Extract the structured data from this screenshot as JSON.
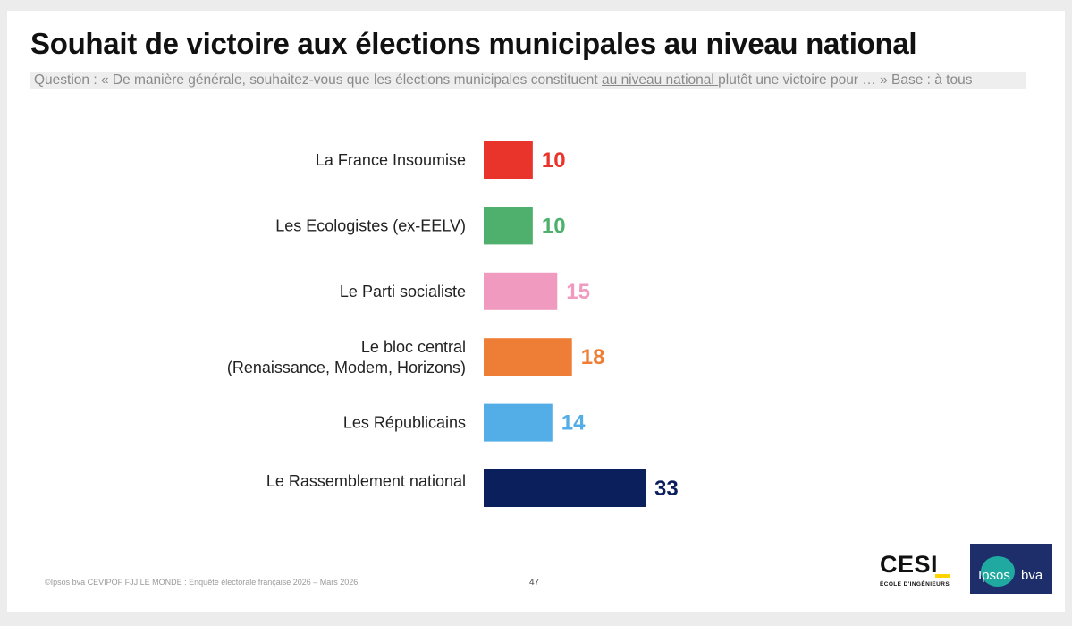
{
  "title": "Souhait de victoire aux élections municipales au niveau national",
  "question": {
    "before": "Question : « De manière générale, souhaitez-vous que les élections municipales constituent ",
    "underlined": "au niveau national ",
    "after": "plutôt une victoire pour … » Base : à tous"
  },
  "chart_data": {
    "type": "bar",
    "orientation": "horizontal",
    "title": "Souhait de victoire aux élections municipales au niveau national",
    "xlabel": "",
    "ylabel": "",
    "xlim": [
      0,
      33
    ],
    "categories": [
      [
        "La France Insoumise"
      ],
      [
        "Les Ecologistes (ex-EELV)"
      ],
      [
        "Le Parti socialiste"
      ],
      [
        "Le bloc central",
        "(Renaissance, Modem, Horizons)"
      ],
      [
        "Les Républicains"
      ],
      [
        "Le Rassemblement national"
      ]
    ],
    "values": [
      10,
      10,
      15,
      18,
      14,
      33
    ],
    "colors": [
      "#e8342a",
      "#4fb06d",
      "#f09abf",
      "#ee7d36",
      "#53ade6",
      "#0b1f5c"
    ],
    "grid": false,
    "legend": "none"
  },
  "footer": {
    "source": "©Ipsos bva  CEVIPOF FJJ LE MONDE : Enquête électorale française 2026 – Mars 2026",
    "page": "47"
  },
  "logos": {
    "cesi": "CESI",
    "cesi_sub": "ÉCOLE D'INGÉNIEURS",
    "ipsos": "Ipsos",
    "bva": "bva"
  }
}
